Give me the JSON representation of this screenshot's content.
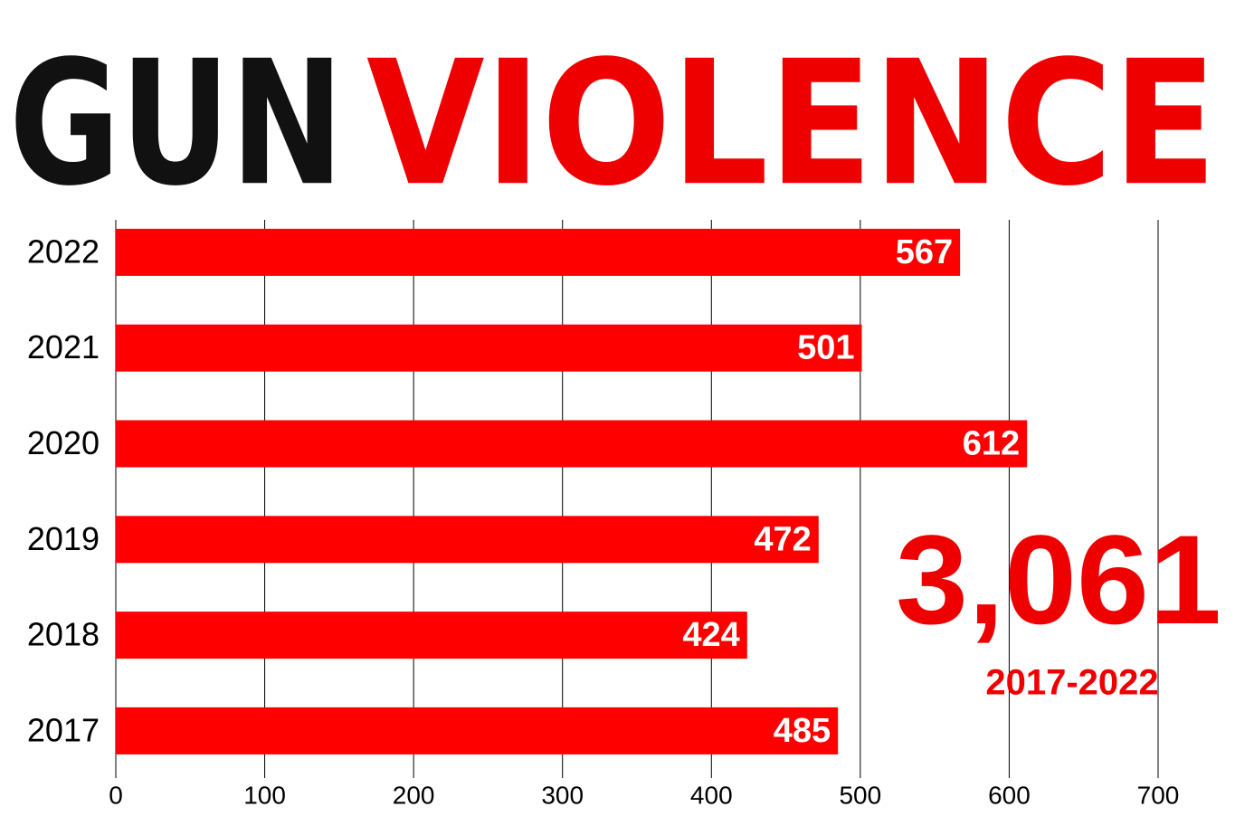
{
  "chart_data": {
    "type": "barh",
    "title": [
      "GUN",
      "VIOLENCE"
    ],
    "title_colors": [
      "#111111",
      "#ee0000"
    ],
    "categories": [
      "2022",
      "2021",
      "2020",
      "2019",
      "2018",
      "2017"
    ],
    "values": [
      567,
      501,
      612,
      472,
      424,
      485
    ],
    "color": "#ff0000",
    "xlim": [
      0,
      700
    ],
    "xticks": [
      0,
      100,
      200,
      300,
      400,
      500,
      600,
      700
    ],
    "grid": true,
    "annotations": [
      "3,061",
      "2017-2022"
    ]
  }
}
